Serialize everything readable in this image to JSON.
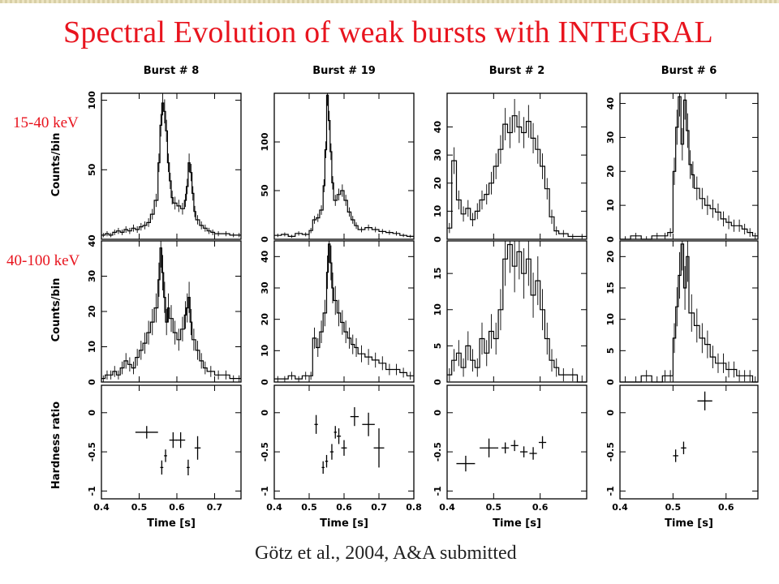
{
  "slide": {
    "title": "Spectral Evolution of weak bursts with INTEGRAL",
    "band_low": "15-40 keV",
    "band_high": "40-100 keV",
    "citation": "Götz et al., 2004, A&A submitted"
  },
  "chart_data": {
    "type": "step",
    "shared_labels": {
      "counts_ylabel": "Counts/bin",
      "hardness_ylabel": "Hardness ratio",
      "xlabel": "Time [s]"
    },
    "panels": [
      {
        "title": "Burst # 8",
        "xlim": [
          0.4,
          0.77
        ],
        "xticks": [
          0.4,
          0.5,
          0.6,
          0.7
        ],
        "xtick_labels": [
          "0.4",
          "0.5",
          "0.6",
          "0.7"
        ],
        "low": {
          "ylim": [
            0,
            105
          ],
          "yticks": [
            0,
            50,
            100
          ],
          "ytick_labels": [
            "",
            "50",
            "100"
          ],
          "x": [
            0.4,
            0.41,
            0.42,
            0.43,
            0.44,
            0.45,
            0.46,
            0.47,
            0.48,
            0.49,
            0.5,
            0.51,
            0.52,
            0.53,
            0.54,
            0.55,
            0.555,
            0.56,
            0.565,
            0.57,
            0.575,
            0.58,
            0.585,
            0.59,
            0.6,
            0.61,
            0.62,
            0.625,
            0.63,
            0.635,
            0.64,
            0.645,
            0.65,
            0.66,
            0.67,
            0.68,
            0.69,
            0.7,
            0.72,
            0.74,
            0.76
          ],
          "y": [
            3,
            4,
            3,
            5,
            6,
            5,
            7,
            6,
            8,
            7,
            9,
            10,
            12,
            18,
            28,
            55,
            82,
            98,
            92,
            78,
            55,
            42,
            30,
            26,
            24,
            22,
            28,
            38,
            55,
            48,
            33,
            20,
            14,
            10,
            8,
            6,
            5,
            4,
            4,
            3,
            3
          ]
        },
        "high": {
          "ylim": [
            0,
            40
          ],
          "yticks": [
            0,
            10,
            20,
            30,
            40
          ],
          "ytick_labels": [
            "0",
            "10",
            "20",
            "30",
            "40"
          ],
          "x": [
            0.4,
            0.41,
            0.42,
            0.43,
            0.44,
            0.45,
            0.46,
            0.47,
            0.48,
            0.49,
            0.5,
            0.51,
            0.52,
            0.53,
            0.54,
            0.55,
            0.555,
            0.56,
            0.565,
            0.57,
            0.575,
            0.58,
            0.59,
            0.6,
            0.61,
            0.62,
            0.625,
            0.63,
            0.635,
            0.64,
            0.65,
            0.66,
            0.67,
            0.68,
            0.7,
            0.72,
            0.74,
            0.76
          ],
          "y": [
            1,
            2,
            2,
            3,
            2,
            4,
            6,
            5,
            4,
            7,
            9,
            11,
            14,
            17,
            21,
            29,
            38,
            31,
            24,
            17,
            21,
            18,
            14,
            12,
            15,
            19,
            21,
            24,
            17,
            12,
            9,
            6,
            4,
            3,
            2,
            2,
            1,
            1
          ]
        },
        "hardness": {
          "ylim": [
            -1.1,
            0.35
          ],
          "yticks": [
            -1,
            -0.5,
            0
          ],
          "ytick_labels": [
            "-1",
            "-0.5",
            "0"
          ],
          "points": [
            {
              "x": 0.52,
              "y": -0.25,
              "xerr": 0.03,
              "yerr": 0.08
            },
            {
              "x": 0.56,
              "y": -0.7,
              "xerr": 0.004,
              "yerr": 0.09
            },
            {
              "x": 0.57,
              "y": -0.55,
              "xerr": 0.004,
              "yerr": 0.08
            },
            {
              "x": 0.59,
              "y": -0.35,
              "xerr": 0.01,
              "yerr": 0.1
            },
            {
              "x": 0.61,
              "y": -0.35,
              "xerr": 0.012,
              "yerr": 0.1
            },
            {
              "x": 0.63,
              "y": -0.7,
              "xerr": 0.004,
              "yerr": 0.1
            },
            {
              "x": 0.655,
              "y": -0.45,
              "xerr": 0.008,
              "yerr": 0.15
            }
          ]
        }
      },
      {
        "title": "Burst # 19",
        "xlim": [
          0.4,
          0.8
        ],
        "xticks": [
          0.4,
          0.5,
          0.6,
          0.7,
          0.8
        ],
        "xtick_labels": [
          "0.4",
          "0.5",
          "0.6",
          "0.7",
          "0.8"
        ],
        "low": {
          "ylim": [
            0,
            150
          ],
          "yticks": [
            0,
            50,
            100
          ],
          "ytick_labels": [
            "0",
            "50",
            "100"
          ],
          "x": [
            0.4,
            0.42,
            0.44,
            0.46,
            0.48,
            0.5,
            0.51,
            0.52,
            0.53,
            0.54,
            0.545,
            0.55,
            0.555,
            0.56,
            0.565,
            0.57,
            0.58,
            0.59,
            0.6,
            0.61,
            0.62,
            0.63,
            0.64,
            0.66,
            0.68,
            0.7,
            0.72,
            0.74,
            0.76,
            0.78
          ],
          "y": [
            4,
            5,
            3,
            6,
            5,
            9,
            20,
            22,
            30,
            55,
            92,
            148,
            122,
            90,
            58,
            40,
            46,
            50,
            40,
            28,
            20,
            14,
            10,
            12,
            10,
            8,
            7,
            6,
            4,
            3
          ]
        },
        "high": {
          "ylim": [
            0,
            45
          ],
          "yticks": [
            0,
            10,
            20,
            30,
            40
          ],
          "ytick_labels": [
            "0",
            "10",
            "20",
            "30",
            "40"
          ],
          "x": [
            0.4,
            0.42,
            0.44,
            0.46,
            0.48,
            0.5,
            0.51,
            0.52,
            0.53,
            0.54,
            0.55,
            0.555,
            0.56,
            0.565,
            0.57,
            0.58,
            0.59,
            0.6,
            0.61,
            0.62,
            0.63,
            0.64,
            0.66,
            0.68,
            0.7,
            0.72,
            0.74,
            0.76,
            0.78
          ],
          "y": [
            1,
            1,
            2,
            1,
            2,
            2,
            14,
            11,
            16,
            22,
            35,
            44,
            38,
            30,
            26,
            22,
            19,
            16,
            14,
            12,
            11,
            9,
            8,
            7,
            6,
            4,
            4,
            3,
            2
          ]
        },
        "hardness": {
          "ylim": [
            -1.1,
            0.35
          ],
          "yticks": [
            -1,
            -0.5,
            0
          ],
          "ytick_labels": [
            "-1",
            "-0.5",
            "0"
          ],
          "points": [
            {
              "x": 0.52,
              "y": -0.15,
              "xerr": 0.005,
              "yerr": 0.12
            },
            {
              "x": 0.54,
              "y": -0.7,
              "xerr": 0.004,
              "yerr": 0.08
            },
            {
              "x": 0.55,
              "y": -0.62,
              "xerr": 0.004,
              "yerr": 0.08
            },
            {
              "x": 0.565,
              "y": -0.5,
              "xerr": 0.005,
              "yerr": 0.1
            },
            {
              "x": 0.575,
              "y": -0.25,
              "xerr": 0.004,
              "yerr": 0.08
            },
            {
              "x": 0.585,
              "y": -0.3,
              "xerr": 0.006,
              "yerr": 0.1
            },
            {
              "x": 0.6,
              "y": -0.45,
              "xerr": 0.008,
              "yerr": 0.1
            },
            {
              "x": 0.63,
              "y": -0.05,
              "xerr": 0.012,
              "yerr": 0.12
            },
            {
              "x": 0.67,
              "y": -0.15,
              "xerr": 0.018,
              "yerr": 0.15
            },
            {
              "x": 0.7,
              "y": -0.45,
              "xerr": 0.015,
              "yerr": 0.25
            }
          ]
        }
      },
      {
        "title": "Burst # 2",
        "xlim": [
          0.4,
          0.7
        ],
        "xticks": [
          0.4,
          0.5,
          0.6
        ],
        "xtick_labels": [
          "0.4",
          "0.5",
          "0.6"
        ],
        "low": {
          "ylim": [
            0,
            52
          ],
          "yticks": [
            0,
            10,
            20,
            30,
            40
          ],
          "ytick_labels": [
            "0",
            "10",
            "20",
            "30",
            "40"
          ],
          "x": [
            0.4,
            0.41,
            0.42,
            0.43,
            0.44,
            0.45,
            0.46,
            0.47,
            0.48,
            0.49,
            0.5,
            0.51,
            0.52,
            0.53,
            0.54,
            0.55,
            0.56,
            0.57,
            0.58,
            0.59,
            0.6,
            0.61,
            0.62,
            0.63,
            0.64,
            0.66,
            0.68
          ],
          "y": [
            4,
            28,
            14,
            9,
            11,
            7,
            10,
            14,
            16,
            20,
            26,
            32,
            41,
            38,
            44,
            40,
            38,
            42,
            36,
            32,
            26,
            18,
            8,
            3,
            2,
            1,
            1
          ]
        },
        "high": {
          "ylim": [
            0,
            19.5
          ],
          "yticks": [
            0,
            5,
            10,
            15
          ],
          "ytick_labels": [
            "0",
            "5",
            "10",
            "15"
          ],
          "x": [
            0.4,
            0.41,
            0.42,
            0.43,
            0.44,
            0.45,
            0.46,
            0.47,
            0.48,
            0.49,
            0.5,
            0.51,
            0.52,
            0.53,
            0.54,
            0.55,
            0.56,
            0.57,
            0.58,
            0.59,
            0.6,
            0.61,
            0.62,
            0.63,
            0.64,
            0.66,
            0.68
          ],
          "y": [
            1,
            3,
            4,
            2,
            5,
            3,
            2,
            6,
            4,
            7,
            6,
            10,
            17,
            19,
            16,
            18,
            15,
            17,
            12,
            14,
            10,
            6,
            3,
            2,
            1,
            1,
            0
          ]
        },
        "hardness": {
          "ylim": [
            -1.1,
            0.35
          ],
          "yticks": [
            -1,
            -0.5,
            0
          ],
          "ytick_labels": [
            "-1",
            "-0.5",
            "0"
          ],
          "points": [
            {
              "x": 0.44,
              "y": -0.65,
              "xerr": 0.02,
              "yerr": 0.1
            },
            {
              "x": 0.49,
              "y": -0.45,
              "xerr": 0.02,
              "yerr": 0.12
            },
            {
              "x": 0.525,
              "y": -0.45,
              "xerr": 0.008,
              "yerr": 0.07
            },
            {
              "x": 0.545,
              "y": -0.42,
              "xerr": 0.008,
              "yerr": 0.07
            },
            {
              "x": 0.565,
              "y": -0.5,
              "xerr": 0.008,
              "yerr": 0.07
            },
            {
              "x": 0.585,
              "y": -0.52,
              "xerr": 0.008,
              "yerr": 0.08
            },
            {
              "x": 0.605,
              "y": -0.38,
              "xerr": 0.008,
              "yerr": 0.08
            }
          ]
        }
      },
      {
        "title": "Burst # 6",
        "xlim": [
          0.4,
          0.66
        ],
        "xticks": [
          0.4,
          0.5,
          0.6
        ],
        "xtick_labels": [
          "0.4",
          "0.5",
          "0.6"
        ],
        "low": {
          "ylim": [
            0,
            43
          ],
          "yticks": [
            0,
            10,
            20,
            30,
            40
          ],
          "ytick_labels": [
            "0",
            "10",
            "20",
            "30",
            "40"
          ],
          "x": [
            0.4,
            0.42,
            0.44,
            0.46,
            0.48,
            0.49,
            0.5,
            0.505,
            0.51,
            0.515,
            0.52,
            0.525,
            0.53,
            0.535,
            0.54,
            0.55,
            0.56,
            0.57,
            0.58,
            0.59,
            0.6,
            0.61,
            0.62,
            0.63,
            0.64,
            0.65
          ],
          "y": [
            0,
            1,
            0,
            1,
            1,
            2,
            20,
            33,
            42,
            28,
            41,
            32,
            22,
            19,
            15,
            12,
            10,
            9,
            8,
            6,
            5,
            4,
            4,
            3,
            2,
            1
          ]
        },
        "high": {
          "ylim": [
            0,
            22.5
          ],
          "yticks": [
            0,
            5,
            10,
            15,
            20
          ],
          "ytick_labels": [
            "0",
            "5",
            "10",
            "15",
            "20"
          ],
          "x": [
            0.4,
            0.42,
            0.44,
            0.46,
            0.48,
            0.49,
            0.5,
            0.505,
            0.51,
            0.515,
            0.52,
            0.525,
            0.53,
            0.54,
            0.55,
            0.56,
            0.57,
            0.58,
            0.59,
            0.6,
            0.61,
            0.62,
            0.63,
            0.64,
            0.65
          ],
          "y": [
            0,
            0,
            1,
            0,
            1,
            1,
            7,
            12,
            17,
            22,
            15,
            20,
            11,
            9,
            7,
            6,
            4,
            3,
            3,
            2,
            2,
            1,
            1,
            1,
            0
          ]
        },
        "hardness": {
          "ylim": [
            -1.1,
            0.35
          ],
          "yticks": [
            -1,
            -0.5,
            0
          ],
          "ytick_labels": [
            "-1",
            "-0.5",
            "0"
          ],
          "points": [
            {
              "x": 0.505,
              "y": -0.55,
              "xerr": 0.005,
              "yerr": 0.08
            },
            {
              "x": 0.52,
              "y": -0.45,
              "xerr": 0.005,
              "yerr": 0.08
            },
            {
              "x": 0.56,
              "y": 0.15,
              "xerr": 0.014,
              "yerr": 0.12
            }
          ]
        }
      }
    ]
  }
}
